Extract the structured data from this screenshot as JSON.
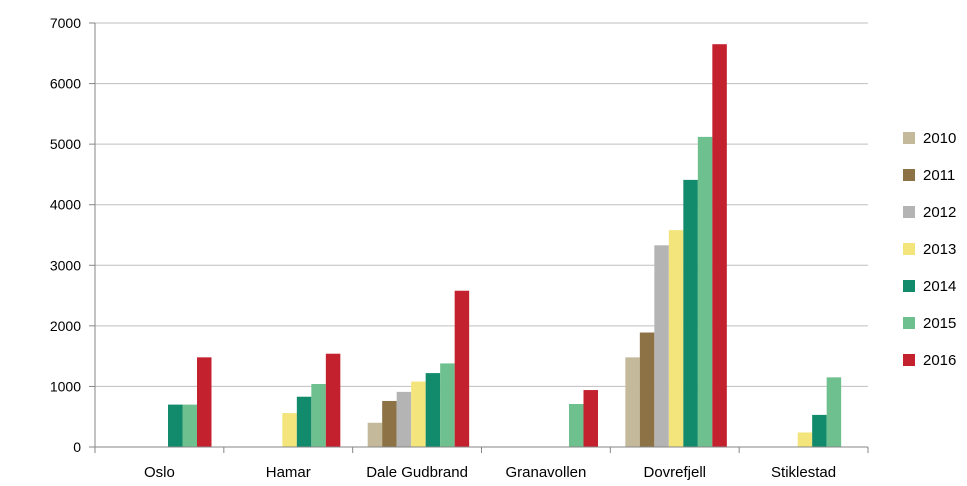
{
  "chart_data": {
    "type": "bar",
    "categories": [
      "Oslo",
      "Hamar",
      "Dale Gudbrand",
      "Granavollen",
      "Dovrefjell",
      "Stiklestad"
    ],
    "series": [
      {
        "name": "2010",
        "color": "#c4b99a",
        "values": [
          null,
          null,
          400,
          null,
          1480,
          null
        ]
      },
      {
        "name": "2011",
        "color": "#8c7245",
        "values": [
          null,
          null,
          760,
          null,
          1890,
          null
        ]
      },
      {
        "name": "2012",
        "color": "#b4b4b4",
        "values": [
          null,
          null,
          910,
          null,
          3330,
          null
        ]
      },
      {
        "name": "2013",
        "color": "#f3e57c",
        "values": [
          null,
          560,
          1080,
          null,
          3580,
          240
        ]
      },
      {
        "name": "2014",
        "color": "#128a6c",
        "values": [
          700,
          830,
          1220,
          null,
          4410,
          530
        ]
      },
      {
        "name": "2015",
        "color": "#6ec08e",
        "values": [
          700,
          1040,
          1380,
          710,
          5120,
          1150
        ]
      },
      {
        "name": "2016",
        "color": "#c4212e",
        "values": [
          1480,
          1540,
          2580,
          940,
          6650,
          null
        ]
      }
    ],
    "ylim": [
      0,
      7000
    ],
    "yticks": [
      0,
      1000,
      2000,
      3000,
      4000,
      5000,
      6000,
      7000
    ],
    "grid": true,
    "legend": "right"
  }
}
